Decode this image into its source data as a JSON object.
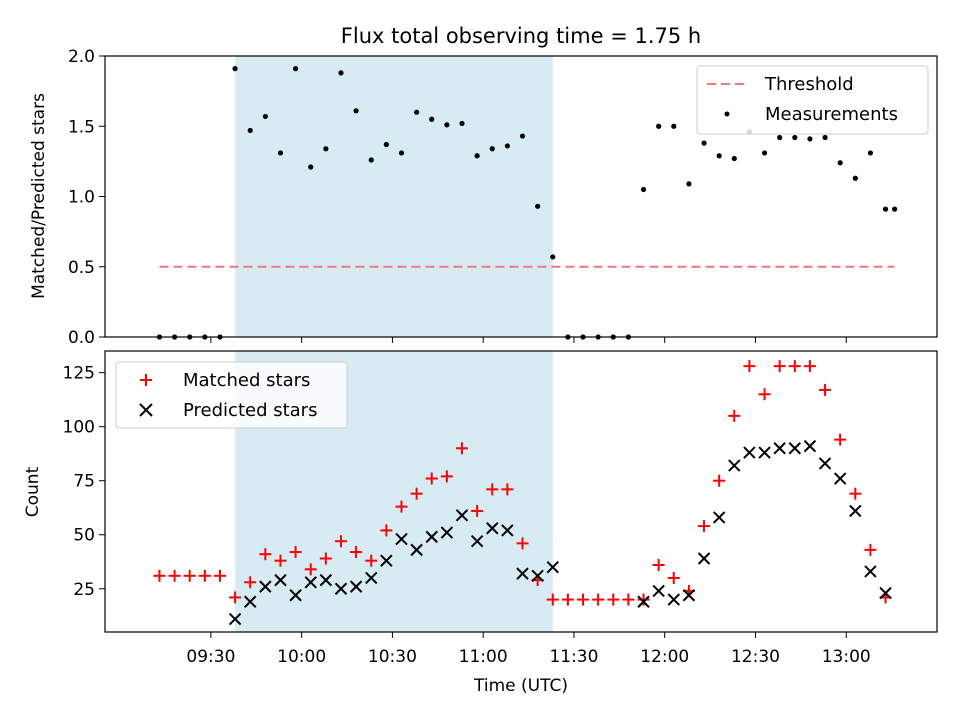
{
  "chart_data": [
    {
      "type": "scatter",
      "title": "Flux total observing time = 1.75 h",
      "xlabel": "",
      "ylabel": "Matched/Predicted stars",
      "ylim": [
        0,
        2.0
      ],
      "yticks": [
        0.0,
        0.5,
        1.0,
        1.5,
        2.0
      ],
      "ytick_labels": [
        "0.0",
        "0.5",
        "1.0",
        "1.5",
        "2.0"
      ],
      "highlight_span": [
        "09:38",
        "11:23"
      ],
      "legend_position": "upper right",
      "threshold": {
        "name": "Threshold",
        "y": 0.5,
        "x_range": [
          "09:13",
          "13:16"
        ],
        "color": "#f07878"
      },
      "series": [
        {
          "name": "Measurements",
          "color": "#000000",
          "x": [
            "09:13",
            "09:18",
            "09:23",
            "09:28",
            "09:33",
            "09:38",
            "09:43",
            "09:48",
            "09:53",
            "09:58",
            "10:03",
            "10:08",
            "10:13",
            "10:18",
            "10:23",
            "10:28",
            "10:33",
            "10:38",
            "10:43",
            "10:48",
            "10:53",
            "10:58",
            "11:03",
            "11:08",
            "11:13",
            "11:18",
            "11:23",
            "11:28",
            "11:33",
            "11:38",
            "11:43",
            "11:48",
            "11:53",
            "11:58",
            "12:03",
            "12:08",
            "12:13",
            "12:18",
            "12:23",
            "12:28",
            "12:33",
            "12:38",
            "12:43",
            "12:48",
            "12:53",
            "12:58",
            "13:03",
            "13:08",
            "13:13",
            "13:16"
          ],
          "y": [
            0,
            0,
            0,
            0,
            0,
            1.91,
            1.47,
            1.57,
            1.31,
            1.91,
            1.21,
            1.34,
            1.88,
            1.61,
            1.26,
            1.37,
            1.31,
            1.6,
            1.55,
            1.51,
            1.52,
            1.29,
            1.34,
            1.36,
            1.43,
            0.93,
            0.57,
            0,
            0,
            0,
            0,
            0,
            1.05,
            1.5,
            1.5,
            1.09,
            1.38,
            1.29,
            1.27,
            1.46,
            1.31,
            1.42,
            1.42,
            1.41,
            1.42,
            1.24,
            1.13,
            1.31,
            0.91,
            0.91
          ]
        }
      ]
    },
    {
      "type": "scatter",
      "title": "",
      "xlabel": "Time (UTC)",
      "ylabel": "Count",
      "ylim": [
        5,
        135
      ],
      "yticks": [
        25,
        50,
        75,
        100,
        125
      ],
      "ytick_labels": [
        "25",
        "50",
        "75",
        "100",
        "125"
      ],
      "xlim": [
        "08:55",
        "13:30"
      ],
      "xticks": [
        "09:30",
        "10:00",
        "10:30",
        "11:00",
        "11:30",
        "12:00",
        "12:30",
        "13:00"
      ],
      "xtick_labels": [
        "09:30",
        "10:00",
        "10:30",
        "11:00",
        "11:30",
        "12:00",
        "12:30",
        "13:00"
      ],
      "highlight_span": [
        "09:38",
        "11:23"
      ],
      "legend_position": "upper left",
      "series": [
        {
          "name": "Matched stars",
          "color": "#ff0000",
          "marker": "+",
          "x": [
            "09:13",
            "09:18",
            "09:23",
            "09:28",
            "09:33",
            "09:38",
            "09:43",
            "09:48",
            "09:53",
            "09:58",
            "10:03",
            "10:08",
            "10:13",
            "10:18",
            "10:23",
            "10:28",
            "10:33",
            "10:38",
            "10:43",
            "10:48",
            "10:53",
            "10:58",
            "11:03",
            "11:08",
            "11:13",
            "11:18",
            "11:23",
            "11:28",
            "11:33",
            "11:38",
            "11:43",
            "11:48",
            "11:53",
            "11:58",
            "12:03",
            "12:08",
            "12:13",
            "12:18",
            "12:23",
            "12:28",
            "12:33",
            "12:38",
            "12:43",
            "12:48",
            "12:53",
            "12:58",
            "13:03",
            "13:08",
            "13:13"
          ],
          "y": [
            31,
            31,
            31,
            31,
            31,
            21,
            28,
            41,
            38,
            42,
            34,
            39,
            47,
            42,
            38,
            52,
            63,
            69,
            76,
            77,
            90,
            61,
            71,
            71,
            46,
            29,
            20,
            20,
            20,
            20,
            20,
            20,
            20,
            36,
            30,
            24,
            54,
            75,
            105,
            128,
            115,
            128,
            128,
            128,
            117,
            94,
            69,
            43,
            21
          ]
        },
        {
          "name": "Predicted stars",
          "color": "#000000",
          "marker": "x",
          "x": [
            "09:38",
            "09:43",
            "09:48",
            "09:53",
            "09:58",
            "10:03",
            "10:08",
            "10:13",
            "10:18",
            "10:23",
            "10:28",
            "10:33",
            "10:38",
            "10:43",
            "10:48",
            "10:53",
            "10:58",
            "11:03",
            "11:08",
            "11:13",
            "11:18",
            "11:23",
            "11:53",
            "11:58",
            "12:03",
            "12:08",
            "12:13",
            "12:18",
            "12:23",
            "12:28",
            "12:33",
            "12:38",
            "12:43",
            "12:48",
            "12:53",
            "12:58",
            "13:03",
            "13:08",
            "13:13"
          ],
          "y": [
            11,
            19,
            26,
            29,
            22,
            28,
            29,
            25,
            26,
            30,
            38,
            48,
            43,
            49,
            51,
            59,
            47,
            53,
            52,
            32,
            31,
            35,
            19,
            24,
            20,
            22,
            39,
            58,
            82,
            88,
            88,
            90,
            90,
            91,
            83,
            76,
            61,
            33,
            23
          ]
        }
      ]
    }
  ]
}
